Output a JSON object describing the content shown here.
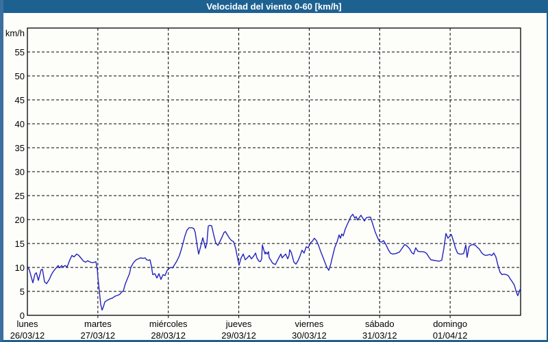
{
  "window": {
    "title": "Velocidad del viento 0-60 [km/h]"
  },
  "colors": {
    "titlebar": "#1d6191",
    "frame": "#1d6191",
    "left_strip": "#3a6f9f",
    "title_text": "#ffffff",
    "plot_background": "#fdfdfa",
    "grid": "#000000",
    "axis": "#000000",
    "line": "#2121bd",
    "label_text": "#000000"
  },
  "chart_data": {
    "type": "line",
    "title": "Velocidad del viento 0-60 [km/h]",
    "ylabel": "km/h",
    "xlabel": "",
    "ylim": [
      0,
      60
    ],
    "yticks": [
      0,
      5,
      10,
      15,
      20,
      25,
      30,
      35,
      40,
      45,
      50,
      55
    ],
    "grid": "dashed",
    "legend": "none",
    "x_days": [
      {
        "name": "lunes",
        "date": "26/03/12"
      },
      {
        "name": "martes",
        "date": "27/03/12"
      },
      {
        "name": "miércoles",
        "date": "28/03/12"
      },
      {
        "name": "jueves",
        "date": "29/03/12"
      },
      {
        "name": "viernes",
        "date": "30/03/12"
      },
      {
        "name": "sábado",
        "date": "31/03/12"
      },
      {
        "name": "domingo",
        "date": "01/04/12"
      }
    ],
    "series": [
      {
        "name": "velocidad del viento",
        "units": "km/h",
        "color": "#2121bd",
        "x_units": "days since lunes 26/03/12 00:00",
        "points": [
          [
            0.0,
            10.3
          ],
          [
            0.029,
            9.4
          ],
          [
            0.068,
            7.3
          ],
          [
            0.078,
            6.8
          ],
          [
            0.107,
            8.6
          ],
          [
            0.126,
            8.9
          ],
          [
            0.156,
            7.3
          ],
          [
            0.194,
            9.5
          ],
          [
            0.214,
            9.6
          ],
          [
            0.243,
            7.0
          ],
          [
            0.272,
            6.6
          ],
          [
            0.311,
            7.5
          ],
          [
            0.34,
            8.5
          ],
          [
            0.369,
            9.2
          ],
          [
            0.408,
            9.9
          ],
          [
            0.437,
            10.4
          ],
          [
            0.457,
            9.9
          ],
          [
            0.486,
            10.4
          ],
          [
            0.506,
            10.1
          ],
          [
            0.535,
            10.4
          ],
          [
            0.564,
            10.1
          ],
          [
            0.603,
            11.6
          ],
          [
            0.632,
            12.5
          ],
          [
            0.661,
            12.2
          ],
          [
            0.7,
            12.8
          ],
          [
            0.729,
            12.5
          ],
          [
            0.758,
            12.0
          ],
          [
            0.797,
            11.3
          ],
          [
            0.826,
            11.1
          ],
          [
            0.856,
            11.4
          ],
          [
            0.894,
            11.1
          ],
          [
            0.924,
            11.0
          ],
          [
            0.953,
            11.1
          ],
          [
            0.972,
            11.2
          ],
          [
            0.992,
            9.7
          ],
          [
            1.001,
            7.8
          ],
          [
            1.021,
            5.1
          ],
          [
            1.04,
            2.3
          ],
          [
            1.06,
            1.1
          ],
          [
            1.079,
            1.8
          ],
          [
            1.099,
            2.8
          ],
          [
            1.128,
            3.1
          ],
          [
            1.167,
            3.4
          ],
          [
            1.206,
            3.6
          ],
          [
            1.244,
            4.0
          ],
          [
            1.283,
            4.2
          ],
          [
            1.312,
            4.4
          ],
          [
            1.342,
            4.9
          ],
          [
            1.361,
            5.1
          ],
          [
            1.39,
            6.6
          ],
          [
            1.41,
            7.3
          ],
          [
            1.429,
            8.0
          ],
          [
            1.449,
            8.7
          ],
          [
            1.468,
            10.0
          ],
          [
            1.497,
            10.8
          ],
          [
            1.517,
            11.2
          ],
          [
            1.546,
            11.6
          ],
          [
            1.575,
            11.8
          ],
          [
            1.604,
            12.0
          ],
          [
            1.643,
            11.9
          ],
          [
            1.672,
            12.0
          ],
          [
            1.692,
            11.6
          ],
          [
            1.721,
            11.5
          ],
          [
            1.74,
            11.6
          ],
          [
            1.76,
            10.3
          ],
          [
            1.779,
            8.5
          ],
          [
            1.808,
            8.7
          ],
          [
            1.838,
            7.8
          ],
          [
            1.867,
            8.7
          ],
          [
            1.896,
            7.5
          ],
          [
            1.925,
            8.5
          ],
          [
            1.954,
            8.3
          ],
          [
            1.983,
            9.4
          ],
          [
            2.003,
            9.7
          ],
          [
            2.032,
            10.0
          ],
          [
            2.061,
            9.9
          ],
          [
            2.09,
            10.6
          ],
          [
            2.119,
            11.3
          ],
          [
            2.158,
            12.5
          ],
          [
            2.197,
            14.4
          ],
          [
            2.236,
            16.6
          ],
          [
            2.265,
            17.8
          ],
          [
            2.294,
            18.3
          ],
          [
            2.333,
            18.3
          ],
          [
            2.363,
            18.1
          ],
          [
            2.382,
            17.3
          ],
          [
            2.411,
            14.4
          ],
          [
            2.431,
            12.8
          ],
          [
            2.46,
            14.4
          ],
          [
            2.489,
            16.2
          ],
          [
            2.508,
            15.1
          ],
          [
            2.528,
            14.0
          ],
          [
            2.547,
            15.1
          ],
          [
            2.567,
            18.6
          ],
          [
            2.586,
            18.8
          ],
          [
            2.615,
            18.7
          ],
          [
            2.644,
            16.8
          ],
          [
            2.674,
            15.1
          ],
          [
            2.703,
            14.6
          ],
          [
            2.732,
            15.4
          ],
          [
            2.761,
            16.3
          ],
          [
            2.79,
            17.3
          ],
          [
            2.81,
            17.5
          ],
          [
            2.839,
            16.8
          ],
          [
            2.868,
            16.1
          ],
          [
            2.897,
            15.6
          ],
          [
            2.926,
            15.4
          ],
          [
            2.956,
            14.0
          ],
          [
            2.985,
            11.8
          ],
          [
            3.004,
            10.5
          ],
          [
            3.033,
            12.0
          ],
          [
            3.063,
            12.8
          ],
          [
            3.092,
            11.6
          ],
          [
            3.121,
            12.0
          ],
          [
            3.15,
            12.5
          ],
          [
            3.179,
            11.8
          ],
          [
            3.208,
            12.3
          ],
          [
            3.238,
            13.0
          ],
          [
            3.257,
            12.0
          ],
          [
            3.286,
            11.3
          ],
          [
            3.306,
            11.2
          ],
          [
            3.325,
            11.8
          ],
          [
            3.335,
            14.7
          ],
          [
            3.354,
            13.7
          ],
          [
            3.374,
            12.8
          ],
          [
            3.383,
            13.2
          ],
          [
            3.403,
            12.8
          ],
          [
            3.422,
            13.3
          ],
          [
            3.432,
            12.0
          ],
          [
            3.451,
            11.6
          ],
          [
            3.48,
            10.9
          ],
          [
            3.519,
            10.6
          ],
          [
            3.529,
            10.9
          ],
          [
            3.568,
            12.0
          ],
          [
            3.597,
            12.8
          ],
          [
            3.616,
            12.0
          ],
          [
            3.646,
            12.5
          ],
          [
            3.665,
            12.8
          ],
          [
            3.694,
            11.8
          ],
          [
            3.714,
            12.5
          ],
          [
            3.723,
            13.7
          ],
          [
            3.743,
            13.2
          ],
          [
            3.762,
            12.3
          ],
          [
            3.782,
            11.1
          ],
          [
            3.811,
            10.7
          ],
          [
            3.84,
            11.4
          ],
          [
            3.869,
            12.4
          ],
          [
            3.898,
            13.6
          ],
          [
            3.927,
            13.0
          ],
          [
            3.957,
            14.3
          ],
          [
            3.986,
            14.1
          ],
          [
            4.015,
            15.1
          ],
          [
            4.044,
            15.5
          ],
          [
            4.073,
            16.1
          ],
          [
            4.103,
            15.6
          ],
          [
            4.132,
            14.6
          ],
          [
            4.161,
            13.4
          ],
          [
            4.19,
            12.3
          ],
          [
            4.219,
            11.2
          ],
          [
            4.248,
            10.1
          ],
          [
            4.278,
            9.4
          ],
          [
            4.307,
            10.8
          ],
          [
            4.336,
            12.6
          ],
          [
            4.365,
            14.3
          ],
          [
            4.394,
            15.3
          ],
          [
            4.424,
            16.8
          ],
          [
            4.443,
            16.1
          ],
          [
            4.462,
            17.0
          ],
          [
            4.482,
            16.6
          ],
          [
            4.511,
            18.0
          ],
          [
            4.54,
            19.0
          ],
          [
            4.569,
            19.9
          ],
          [
            4.589,
            20.6
          ],
          [
            4.618,
            21.1
          ],
          [
            4.647,
            20.3
          ],
          [
            4.666,
            20.6
          ],
          [
            4.686,
            19.9
          ],
          [
            4.715,
            20.5
          ],
          [
            4.734,
            20.9
          ],
          [
            4.764,
            20.2
          ],
          [
            4.783,
            19.7
          ],
          [
            4.812,
            20.4
          ],
          [
            4.841,
            20.5
          ],
          [
            4.87,
            20.5
          ],
          [
            4.909,
            18.7
          ],
          [
            4.939,
            17.3
          ],
          [
            4.968,
            16.3
          ],
          [
            4.997,
            15.4
          ],
          [
            5.026,
            15.3
          ],
          [
            5.055,
            15.6
          ],
          [
            5.084,
            14.9
          ],
          [
            5.123,
            13.7
          ],
          [
            5.152,
            13.0
          ],
          [
            5.182,
            12.8
          ],
          [
            5.23,
            12.9
          ],
          [
            5.279,
            13.2
          ],
          [
            5.327,
            14.2
          ],
          [
            5.356,
            14.8
          ],
          [
            5.386,
            14.5
          ],
          [
            5.425,
            13.9
          ],
          [
            5.454,
            13.1
          ],
          [
            5.483,
            12.8
          ],
          [
            5.512,
            14.1
          ],
          [
            5.541,
            13.4
          ],
          [
            5.57,
            13.3
          ],
          [
            5.609,
            13.3
          ],
          [
            5.638,
            13.2
          ],
          [
            5.667,
            12.9
          ],
          [
            5.697,
            12.2
          ],
          [
            5.726,
            11.6
          ],
          [
            5.765,
            11.5
          ],
          [
            5.804,
            11.4
          ],
          [
            5.843,
            11.3
          ],
          [
            5.881,
            11.5
          ],
          [
            5.911,
            14.0
          ],
          [
            5.94,
            17.1
          ],
          [
            5.969,
            16.1
          ],
          [
            5.998,
            16.6
          ],
          [
            6.017,
            16.9
          ],
          [
            6.047,
            15.5
          ],
          [
            6.076,
            14.0
          ],
          [
            6.105,
            13.0
          ],
          [
            6.134,
            12.8
          ],
          [
            6.163,
            12.8
          ],
          [
            6.192,
            12.9
          ],
          [
            6.222,
            14.7
          ],
          [
            6.241,
            12.1
          ],
          [
            6.27,
            14.4
          ],
          [
            6.299,
            14.7
          ],
          [
            6.329,
            14.8
          ],
          [
            6.358,
            14.6
          ],
          [
            6.387,
            14.2
          ],
          [
            6.416,
            13.8
          ],
          [
            6.445,
            13.1
          ],
          [
            6.474,
            12.7
          ],
          [
            6.504,
            12.5
          ],
          [
            6.533,
            12.6
          ],
          [
            6.562,
            12.7
          ],
          [
            6.591,
            12.5
          ],
          [
            6.62,
            13.0
          ],
          [
            6.649,
            12.2
          ],
          [
            6.679,
            10.4
          ],
          [
            6.708,
            9.0
          ],
          [
            6.737,
            8.5
          ],
          [
            6.766,
            8.6
          ],
          [
            6.795,
            8.5
          ],
          [
            6.824,
            8.3
          ],
          [
            6.853,
            7.6
          ],
          [
            6.882,
            7.0
          ],
          [
            6.912,
            6.3
          ],
          [
            6.941,
            4.8
          ],
          [
            6.96,
            4.1
          ],
          [
            6.98,
            4.9
          ],
          [
            6.999,
            5.6
          ]
        ]
      }
    ]
  }
}
